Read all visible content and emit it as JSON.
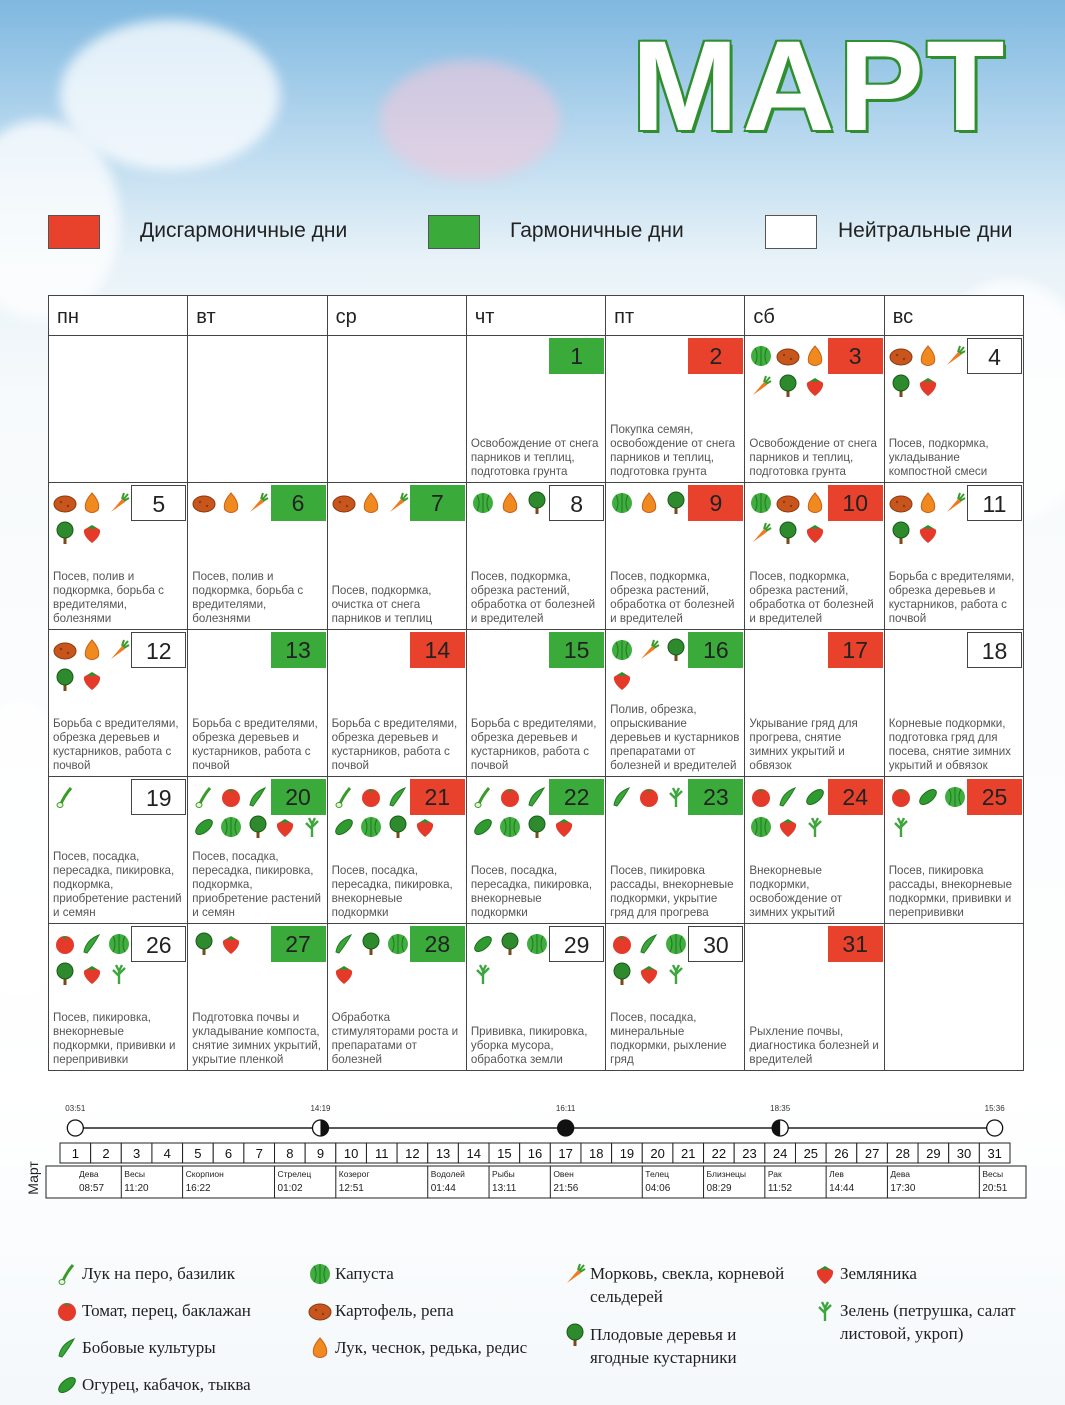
{
  "title": "МАРТ",
  "legend": [
    {
      "label": "Дисгармоничные дни",
      "color": "#e8412c"
    },
    {
      "label": "Гармоничные дни",
      "color": "#3aaa3a"
    },
    {
      "label": "Нейтральные дни",
      "color": "#ffffff"
    }
  ],
  "weekdays": [
    "пн",
    "вт",
    "ср",
    "чт",
    "пт",
    "сб",
    "вс"
  ],
  "weeks": [
    [
      null,
      null,
      null,
      {
        "day": 1,
        "status": 1,
        "icons": [],
        "text": "Освобождение от снега парников и теплиц, подготовка грунта"
      },
      {
        "day": 2,
        "status": 0,
        "icons": [],
        "text": "Покупка семян, освобождение от снега парников и теплиц, подготовка грунта"
      },
      {
        "day": 3,
        "status": 0,
        "icons": [
          4,
          5,
          6,
          7,
          8,
          9
        ],
        "text": "Освобождение от снега парников и теплиц, подготовка грунта"
      },
      {
        "day": 4,
        "status": 2,
        "icons": [
          5,
          6,
          7,
          8,
          9
        ],
        "text": "Посев, подкормка, укладывание компостной смеси"
      }
    ],
    [
      {
        "day": 5,
        "status": 2,
        "icons": [
          5,
          6,
          7,
          8,
          9
        ],
        "text": "Посев, полив и подкормка, борьба с вредителями, болезнями"
      },
      {
        "day": 6,
        "status": 1,
        "icons": [
          5,
          6,
          7
        ],
        "text": "Посев, полив и подкормка, борьба с вредителями, болезнями"
      },
      {
        "day": 7,
        "status": 1,
        "icons": [
          5,
          6,
          7
        ],
        "text": "Посев, подкормка, очистка от снега парников и теплиц"
      },
      {
        "day": 8,
        "status": 2,
        "icons": [
          4,
          6,
          8
        ],
        "text": "Посев, подкормка, обрезка растений, обработка от болезней и вредителей"
      },
      {
        "day": 9,
        "status": 0,
        "icons": [
          4,
          6,
          8
        ],
        "text": "Посев, подкормка, обрезка растений, обработка от болезней и вредителей"
      },
      {
        "day": 10,
        "status": 0,
        "icons": [
          4,
          5,
          6,
          7,
          8,
          9
        ],
        "text": "Посев, подкормка, обрезка растений, обработка от болезней и вредителей"
      },
      {
        "day": 11,
        "status": 2,
        "icons": [
          5,
          6,
          7,
          8,
          9
        ],
        "text": "Борьба с вредителями, обрезка деревьев и кустарников, работа с почвой"
      }
    ],
    [
      {
        "day": 12,
        "status": 2,
        "icons": [
          5,
          6,
          7,
          8,
          9
        ],
        "text": "Борьба с вредителями, обрезка деревьев и кустарников, работа с почвой"
      },
      {
        "day": 13,
        "status": 1,
        "icons": [],
        "text": "Борьба с вредителями, обрезка деревьев и кустарников, работа с почвой"
      },
      {
        "day": 14,
        "status": 0,
        "icons": [],
        "text": "Борьба с вредителями, обрезка деревьев и кустарников, работа с почвой"
      },
      {
        "day": 15,
        "status": 1,
        "icons": [],
        "text": "Борьба с вредителями, обрезка деревьев и кустарников, работа с почвой"
      },
      {
        "day": 16,
        "status": 1,
        "icons": [
          4,
          7,
          8,
          9
        ],
        "text": "Полив, обрезка, опрыскивание деревьев и кустарников препаратами от болезней и вредителей"
      },
      {
        "day": 17,
        "status": 0,
        "icons": [],
        "text": "Укрывание гряд для прогрева, снятие зимних укрытий и обвязок"
      },
      {
        "day": 18,
        "status": 2,
        "icons": [],
        "text": "Корневые подкормки, подготовка гряд для посева, снятие зимних укрытий и обвязок"
      }
    ],
    [
      {
        "day": 19,
        "status": 2,
        "icons": [
          0
        ],
        "text": "Посев, посадка, пересадка, пикировка, подкормка, приобретение растений и семян"
      },
      {
        "day": 20,
        "status": 1,
        "icons": [
          0,
          1,
          2,
          3,
          4,
          8,
          9,
          10
        ],
        "text": "Посев, посадка, пересадка, пикировка, подкормка, приобретение растений и семян"
      },
      {
        "day": 21,
        "status": 0,
        "icons": [
          0,
          1,
          2,
          3,
          4,
          8,
          9
        ],
        "text": "Посев, посадка, пересадка, пикировка, внекорневые подкормки"
      },
      {
        "day": 22,
        "status": 1,
        "icons": [
          0,
          1,
          2,
          3,
          4,
          8,
          9
        ],
        "text": "Посев, посадка, пересадка, пикировка, внекорневые подкормки"
      },
      {
        "day": 23,
        "status": 1,
        "icons": [
          2,
          1,
          10
        ],
        "text": "Посев, пикировка рассады, внекорневые подкормки, укрытие гряд для прогрева"
      },
      {
        "day": 24,
        "status": 0,
        "icons": [
          1,
          2,
          3,
          4,
          9,
          10
        ],
        "text": "Внекорневые подкормки, освобождение от зимних укрытий"
      },
      {
        "day": 25,
        "status": 0,
        "icons": [
          1,
          3,
          4,
          10
        ],
        "text": "Посев, пикировка рассады, внекорневые подкормки, прививки и перепрививки"
      }
    ],
    [
      {
        "day": 26,
        "status": 2,
        "icons": [
          1,
          2,
          4,
          8,
          9,
          10
        ],
        "text": "Посев, пикировка, внекорневые подкормки, прививки и перепрививки"
      },
      {
        "day": 27,
        "status": 1,
        "icons": [
          8,
          9
        ],
        "text": "Подготовка почвы и укладывание компоста, снятие зимних укрытий, укрытие пленкой"
      },
      {
        "day": 28,
        "status": 1,
        "icons": [
          2,
          8,
          4,
          9
        ],
        "text": "Обработка стимуляторами роста и препаратами от болезней"
      },
      {
        "day": 29,
        "status": 2,
        "icons": [
          3,
          8,
          4,
          10
        ],
        "text": "Прививка, пикировка, уборка мусора, обработка земли"
      },
      {
        "day": 30,
        "status": 2,
        "icons": [
          1,
          2,
          4,
          8,
          9,
          10
        ],
        "text": "Посев, посадка, минеральные подкормки, рыхление гряд"
      },
      {
        "day": 31,
        "status": 0,
        "icons": [],
        "text": "Рыхление почвы, диагностика болезней и вредителей"
      },
      null
    ]
  ],
  "moon_phases": [
    {
      "time": "03:51",
      "day": 1
    },
    {
      "time": "14:19",
      "day": 9
    },
    {
      "time": "16:11",
      "day": 17
    },
    {
      "time": "18:35",
      "day": 24
    },
    {
      "time": "15:36",
      "day": 31
    }
  ],
  "month_label": "Март",
  "strip_days": [
    1,
    2,
    3,
    4,
    5,
    6,
    7,
    8,
    9,
    10,
    11,
    12,
    13,
    14,
    15,
    16,
    17,
    18,
    19,
    20,
    21,
    22,
    23,
    24,
    25,
    26,
    27,
    28,
    29,
    30,
    31
  ],
  "zodiac": [
    {
      "sign": "Дева",
      "time": "08:57",
      "day": 1
    },
    {
      "sign": "Весы",
      "time": "11:20",
      "day": 3
    },
    {
      "sign": "Скорпион",
      "time": "16:22",
      "day": 5
    },
    {
      "sign": "Стрелец",
      "time": "01:02",
      "day": 8
    },
    {
      "sign": "Козерог",
      "time": "12:51",
      "day": 10
    },
    {
      "sign": "Водолей",
      "time": "01:44",
      "day": 13
    },
    {
      "sign": "Рыбы",
      "time": "13:11",
      "day": 15
    },
    {
      "sign": "Овен",
      "time": "21:56",
      "day": 17
    },
    {
      "sign": "Телец",
      "time": "04:06",
      "day": 20
    },
    {
      "sign": "Близнецы",
      "time": "08:29",
      "day": 22
    },
    {
      "sign": "Рак",
      "time": "11:52",
      "day": 24
    },
    {
      "sign": "Лев",
      "time": "14:44",
      "day": 26
    },
    {
      "sign": "Дева",
      "time": "17:30",
      "day": 28
    },
    {
      "sign": "Весы",
      "time": "20:51",
      "day": 31
    }
  ],
  "crops": [
    "Лук на перо, базилик",
    "Томат, перец, баклажан",
    "Бобовые культуры",
    "Огурец, кабачок, тыква",
    "Капуста",
    "Картофель, репа",
    "Лук, чеснок, редька, редис",
    "Морковь, свекла, корневой сельдерей",
    "Плодовые деревья и ягодные кустарники",
    "Земляника",
    "Зелень (петрушка, салат листовой, укроп)"
  ]
}
